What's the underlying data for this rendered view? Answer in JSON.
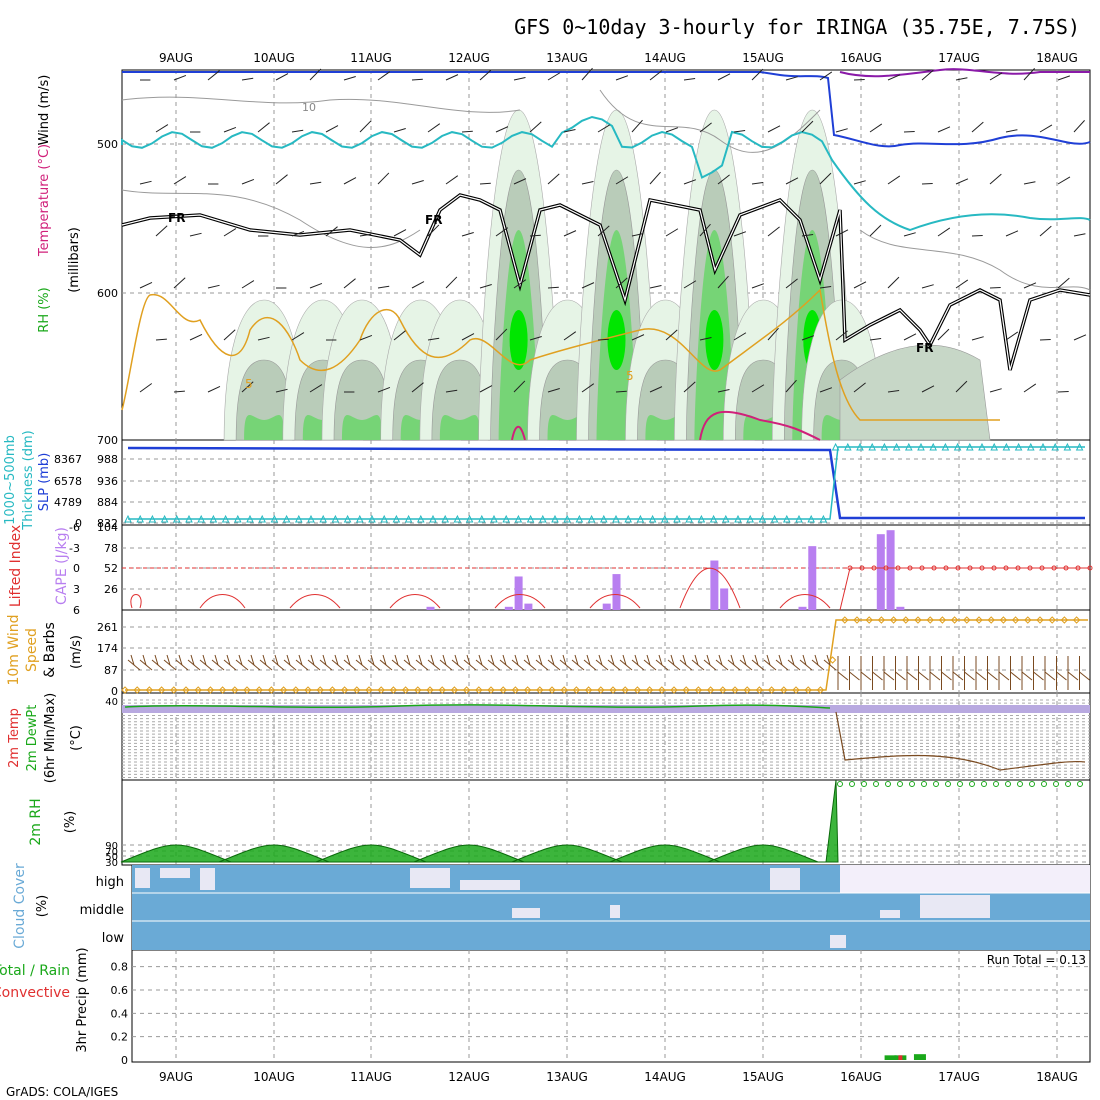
{
  "header": {
    "title": "GFS 0~10day 3-hourly for IRINGA (35.75E, 7.75S)",
    "footer": "GrADS: COLA/IGES"
  },
  "dates": [
    "9AUG",
    "10AUG",
    "11AUG",
    "12AUG",
    "13AUG",
    "14AUG",
    "15AUG",
    "16AUG",
    "17AUG",
    "18AUG"
  ],
  "colors": {
    "blue": "#1f3fd6",
    "cyan": "#27b9c2",
    "orange": "#e0a020",
    "magenta": "#d0207a",
    "purple": "#8a1aa8",
    "rh_light": "#e6f4e6",
    "rh_mid": "#76d476",
    "rh_bright": "#00e600",
    "cape": "#b87ff0",
    "lifted": "#e03030",
    "wind_speed": "#e0a020",
    "barb": "#7a4a20",
    "rh2m": "#1aa81a",
    "cloud": "#6aaad6",
    "precip_total": "#1aa81a",
    "precip_conv": "#e03030"
  },
  "panel_labels": {
    "upper_wind": "Wind (m/s)",
    "upper_temp": "Temperature (°C)",
    "upper_rh": "RH (%)",
    "upper_pres": "(millibars)",
    "slp_thick1": "1000~500mb",
    "slp_thick2": "Thickness (dm)",
    "slp": "SLP (mb)",
    "cape": "CAPE (J/kg)",
    "lifted": "Lifted Index",
    "wind10_a": "10m Wind",
    "wind10_b": "Speed",
    "wind10_c": "& Barbs",
    "wind10_unit": "(m/s)",
    "temp2m_a": "2m Temp",
    "temp2m_b": "2m DewPt",
    "temp2m_c": "(6hr Min/Max)",
    "temp2m_unit": "(°C)",
    "rh2m": "2m RH",
    "rh2m_unit": "(%)",
    "cloud": "Cloud Cover",
    "cloud_unit": "(%)",
    "cloud_high": "high",
    "cloud_middle": "middle",
    "cloud_low": "low",
    "precip_a": "3hr Precip (mm)",
    "precip_b": "Total / Rain",
    "precip_c": "Convective",
    "run_total": "Run Total = 0.13"
  },
  "contour_labels": {
    "fr": "FR",
    "t10": "10",
    "t5a": "5",
    "t5b": "5"
  },
  "chart_data": [
    {
      "type": "line",
      "panel": "upper-air (pressure vs time)",
      "ylabel": "(millibars)",
      "y_ticks": [
        "500",
        "600",
        "700"
      ],
      "ylim": [
        700,
        450
      ],
      "x_ticks": [
        "9AUG",
        "10AUG",
        "11AUG",
        "12AUG",
        "13AUG",
        "14AUG",
        "15AUG",
        "16AUG",
        "17AUG",
        "18AUG"
      ],
      "contours": [
        "FR",
        "10",
        "5"
      ]
    },
    {
      "type": "line",
      "panel": "SLP / 1000-500mb Thickness",
      "slp_ticks": [
        "988",
        "936",
        "884",
        "832"
      ],
      "thickness_ticks": [
        "8367",
        "6578",
        "4789",
        "0"
      ],
      "series": [
        {
          "name": "SLP (mb)",
          "color": "#1f3fd6",
          "segments": [
            {
              "from": "9AUG",
              "to": "15AUG",
              "value": 1000
            },
            {
              "from": "16AUG",
              "to": "18AUG",
              "value": 835
            }
          ]
        },
        {
          "name": "1000~500mb Thickness (dm)",
          "color": "#27b9c2",
          "segments": [
            {
              "from": "9AUG",
              "to": "15AUG",
              "value": 0
            },
            {
              "from": "16AUG",
              "to": "18AUG",
              "value": 9600
            }
          ]
        }
      ]
    },
    {
      "type": "bar",
      "panel": "CAPE / Lifted Index",
      "cape_ticks": [
        "104",
        "78",
        "52",
        "26"
      ],
      "li_ticks": [
        "-6",
        "-3",
        "0",
        "3",
        "6"
      ],
      "cape_values_jkg": [
        {
          "time": "11.6AUG",
          "value": 4
        },
        {
          "time": "12.4AUG",
          "value": 4
        },
        {
          "time": "12.5AUG",
          "value": 42
        },
        {
          "time": "12.6AUG",
          "value": 8
        },
        {
          "time": "13.4AUG",
          "value": 8
        },
        {
          "time": "13.5AUG",
          "value": 45
        },
        {
          "time": "14.5AUG",
          "value": 62
        },
        {
          "time": "14.6AUG",
          "value": 27
        },
        {
          "time": "15.4AUG",
          "value": 4
        },
        {
          "time": "15.5AUG",
          "value": 80
        },
        {
          "time": "16.2AUG",
          "value": 95
        },
        {
          "time": "16.3AUG",
          "value": 100
        },
        {
          "time": "16.4AUG",
          "value": 4
        }
      ]
    },
    {
      "type": "line",
      "panel": "10m Wind Speed & Barbs",
      "ylabel": "(m/s)",
      "y_ticks": [
        "261",
        "174",
        "87",
        "0"
      ],
      "series": [
        {
          "name": "10m Wind Speed",
          "segments": [
            {
              "from": "9AUG",
              "to": "15AUG",
              "value": 2
            },
            {
              "from": "16AUG",
              "to": "18AUG",
              "value": 255
            }
          ]
        }
      ]
    },
    {
      "type": "line",
      "panel": "2m Temp / 2m DewPt",
      "ylabel": "(°C)",
      "y_ticks": [
        "40"
      ]
    },
    {
      "type": "area",
      "panel": "2m RH",
      "ylabel": "(%)",
      "y_ticks": [
        "90",
        "70",
        "50",
        "30"
      ],
      "series": [
        {
          "name": "2m RH",
          "peaks_at": [
            "9AUG",
            "10AUG",
            "11AUG",
            "12AUG",
            "13AUG",
            "14AUG",
            "15AUG"
          ],
          "peak_value": 92,
          "min_value": 30
        }
      ]
    },
    {
      "type": "heatmap",
      "panel": "Cloud Cover",
      "rows": [
        "high",
        "middle",
        "low"
      ]
    },
    {
      "type": "bar",
      "panel": "3hr Precip",
      "ylabel": "3hr Precip (mm)",
      "y_ticks": [
        "0.8",
        "0.6",
        "0.4",
        "0.2",
        "0"
      ],
      "ylim": [
        0,
        0.9
      ],
      "values": [
        {
          "time": "16.3AUG",
          "total": 0.04,
          "convective": 0.0
        },
        {
          "time": "16.4AUG",
          "total": 0.04,
          "convective": 0.04
        },
        {
          "time": "16.6AUG",
          "total": 0.05,
          "convective": 0.0
        }
      ],
      "run_total": "Run Total = 0.13"
    }
  ]
}
